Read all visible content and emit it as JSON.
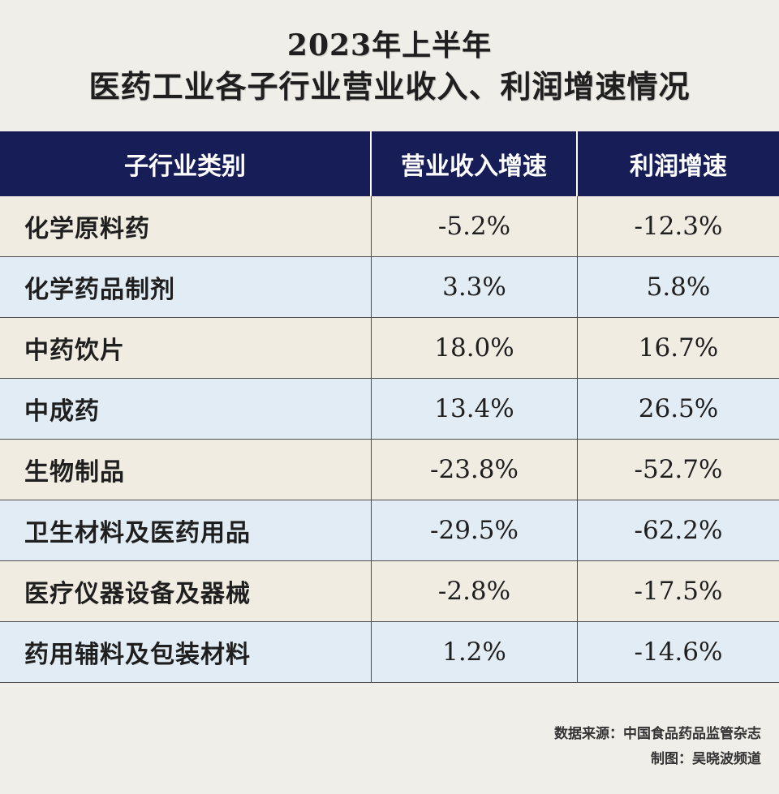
{
  "title": {
    "line1": "2023年上半年",
    "line2": "医药工业各子行业营业收入、利润增速情况"
  },
  "table": {
    "headers": [
      "子行业类别",
      "营业收入增速",
      "利润增速"
    ],
    "rows": [
      {
        "category": "化学原料药",
        "revenue_growth": "-5.2%",
        "profit_growth": "-12.3%"
      },
      {
        "category": "化学药品制剂",
        "revenue_growth": "3.3%",
        "profit_growth": "5.8%"
      },
      {
        "category": "中药饮片",
        "revenue_growth": "18.0%",
        "profit_growth": "16.7%"
      },
      {
        "category": "中成药",
        "revenue_growth": "13.4%",
        "profit_growth": "26.5%"
      },
      {
        "category": "生物制品",
        "revenue_growth": "-23.8%",
        "profit_growth": "-52.7%"
      },
      {
        "category": "卫生材料及医药用品",
        "revenue_growth": "-29.5%",
        "profit_growth": "-62.2%"
      },
      {
        "category": "医疗仪器设备及器械",
        "revenue_growth": "-2.8%",
        "profit_growth": "-17.5%"
      },
      {
        "category": "药用辅料及包装材料",
        "revenue_growth": "1.2%",
        "profit_growth": "-14.6%"
      }
    ]
  },
  "footer": {
    "source": "数据来源：中国食品药品监管杂志",
    "credit": "制图：吴晓波频道"
  },
  "colors": {
    "background": "#efeee9",
    "header": "#161d57",
    "row_beige": "#f1ece2",
    "row_blue": "#e2ecf4"
  },
  "chart_data": {
    "type": "table",
    "title": "2023年上半年 医药工业各子行业营业收入、利润增速情况",
    "columns": [
      "子行业类别",
      "营业收入增速",
      "利润增速"
    ],
    "categories": [
      "化学原料药",
      "化学药品制剂",
      "中药饮片",
      "中成药",
      "生物制品",
      "卫生材料及医药用品",
      "医疗仪器设备及器械",
      "药用辅料及包装材料"
    ],
    "series": [
      {
        "name": "营业收入增速",
        "values": [
          -5.2,
          3.3,
          18.0,
          13.4,
          -23.8,
          -29.5,
          -2.8,
          1.2
        ]
      },
      {
        "name": "利润增速",
        "values": [
          -12.3,
          5.8,
          16.7,
          26.5,
          -52.7,
          -62.2,
          -17.5,
          -14.6
        ]
      }
    ]
  }
}
